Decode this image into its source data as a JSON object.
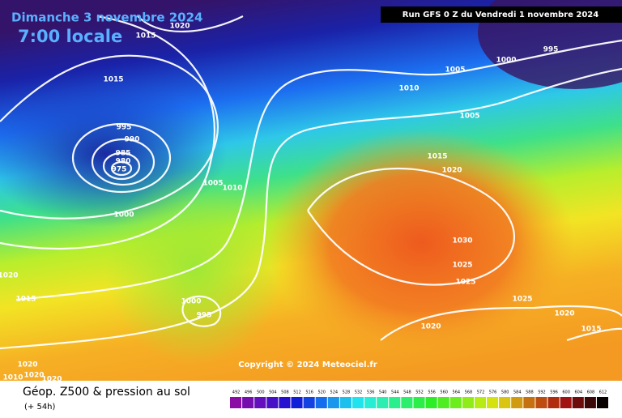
{
  "header": {
    "date": "Dimanche 3 novembre 2024",
    "time": "7:00 locale",
    "run": "Run GFS 0 Z du Vendredi 1 novembre 2024"
  },
  "copyright": "Copyright © 2024 Meteociel.fr",
  "footer": {
    "title": "Géop. Z500 & pression au sol",
    "lead": "(+ 54h)"
  },
  "isobar_labels": [
    1015,
    1020,
    1015,
    995,
    990,
    985,
    980,
    975,
    1000,
    1005,
    1010,
    1000,
    995,
    1015,
    1020,
    1020,
    1020,
    1010,
    1020,
    1005,
    1000,
    995,
    1010,
    1005,
    1015,
    1020,
    1030,
    1025,
    1025,
    1025,
    1020,
    1020,
    1015
  ],
  "colorbar_labels": [
    492,
    496,
    500,
    504,
    508,
    512,
    516,
    520,
    524,
    528,
    532,
    536,
    540,
    544,
    548,
    552,
    556,
    560,
    564,
    568,
    572,
    576,
    580,
    584,
    588,
    592,
    596,
    600,
    604,
    608,
    612
  ]
}
